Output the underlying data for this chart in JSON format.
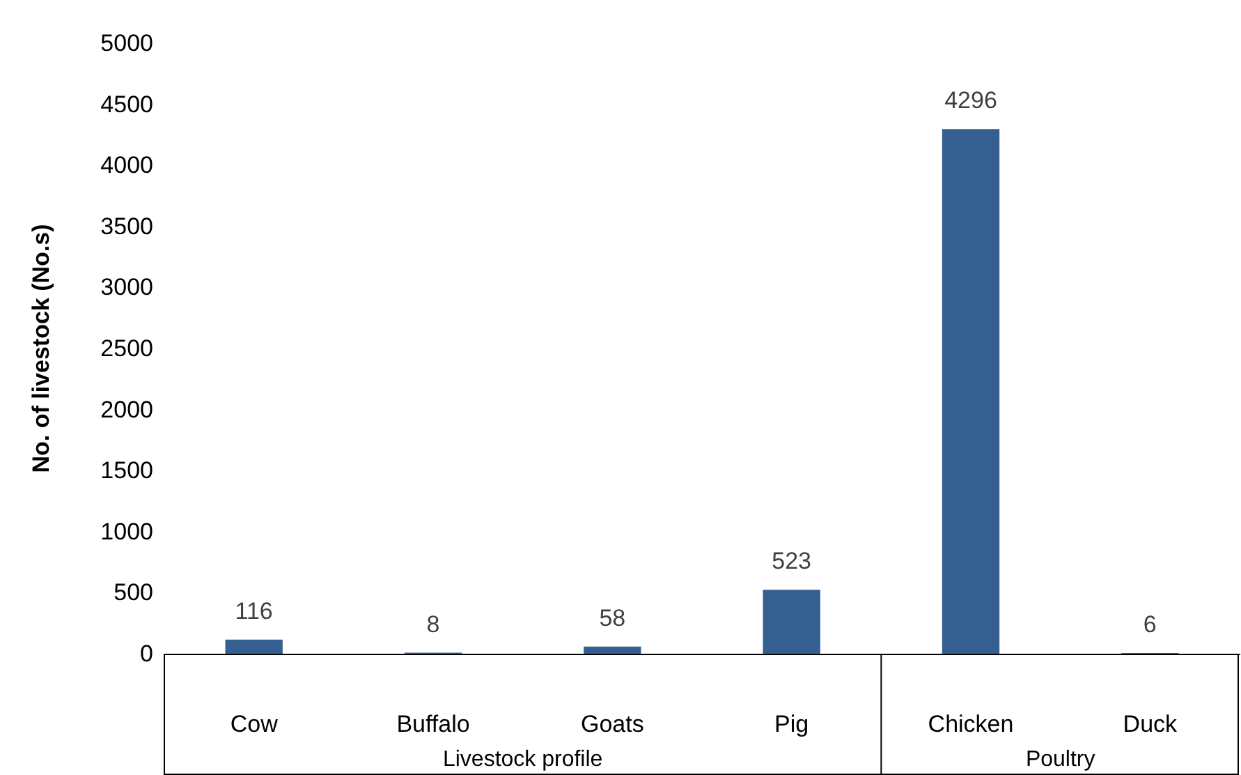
{
  "chart_data": {
    "type": "bar",
    "ylabel": "No. of livestock (No.s)",
    "categories": [
      "Cow",
      "Buffalo",
      "Goats",
      "Pig",
      "Chicken",
      "Duck"
    ],
    "values": [
      116,
      8,
      58,
      523,
      4296,
      6
    ],
    "color": "#365f91",
    "ylim": [
      0,
      5000
    ],
    "yticks": [
      0,
      500,
      1000,
      1500,
      2000,
      2500,
      3000,
      3500,
      4000,
      4500,
      5000
    ],
    "grid": false,
    "data_labels": true,
    "annotations": [
      "Livestock profile",
      "Poultry"
    ]
  }
}
